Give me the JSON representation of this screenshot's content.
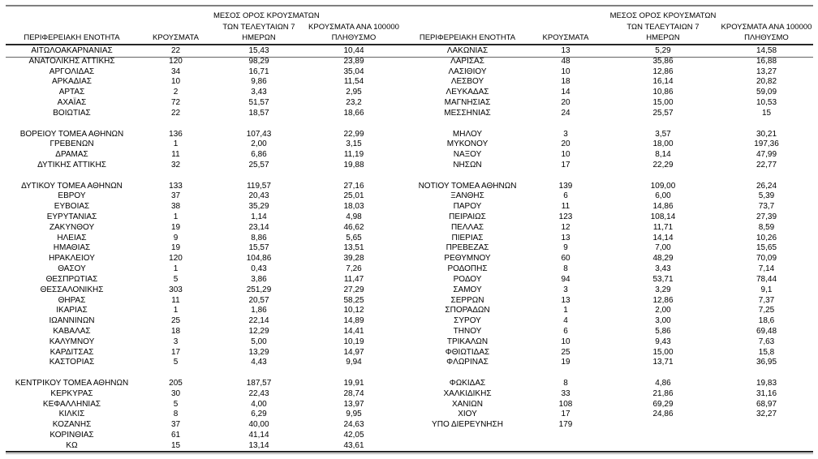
{
  "columns": [
    {
      "key": "name",
      "label": "ΠΕΡΙΦΕΡΕΙΑΚΗ ΕΝΟΤΗΤΑ"
    },
    {
      "key": "cases",
      "label": "ΚΡΟΥΣΜΑΤΑ"
    },
    {
      "key": "avg7",
      "label": "ΜΕΣΟΣ ΟΡΟΣ ΚΡΟΥΣΜΑΤΩΝ\nΤΩΝ ΤΕΛΕΥΤΑΙΩΝ 7\nΗΜΕΡΩΝ"
    },
    {
      "key": "per100k",
      "label": "ΚΡΟΥΣΜΑΤΑ ΑΝΑ 100000\nΠΛΗΘΥΣΜΟ"
    }
  ],
  "colors": {
    "text": "#000000",
    "top_rule": "#7f7f7f",
    "header_rule": "#262626",
    "freeze_rule": "#636363",
    "bottom_rule_dark": "#262626",
    "bottom_rule_grey": "#a6a6a6"
  },
  "tables": [
    {
      "groups": [
        {
          "rows": [
            {
              "name": "ΑΙΤΩΛΟΑΚΑΡΝΑΝΙΑΣ",
              "cases": "22",
              "avg7": "15,43",
              "per100k": "10,44"
            },
            {
              "name": "ΑΝΑΤΟΛΙΚΗΣ ΑΤΤΙΚΗΣ",
              "cases": "120",
              "avg7": "98,29",
              "per100k": "23,89"
            },
            {
              "name": "ΑΡΓΟΛΙΔΑΣ",
              "cases": "34",
              "avg7": "16,71",
              "per100k": "35,04"
            },
            {
              "name": "ΑΡΚΑΔΙΑΣ",
              "cases": "10",
              "avg7": "9,86",
              "per100k": "11,54"
            },
            {
              "name": "ΑΡΤΑΣ",
              "cases": "2",
              "avg7": "3,43",
              "per100k": "2,95"
            },
            {
              "name": "ΑΧΑΪΑΣ",
              "cases": "72",
              "avg7": "51,57",
              "per100k": "23,2"
            },
            {
              "name": "ΒΟΙΩΤΙΑΣ",
              "cases": "22",
              "avg7": "18,57",
              "per100k": "18,66"
            }
          ]
        },
        {
          "rows": [
            {
              "name": "ΒΟΡΕΙΟΥ ΤΟΜΕΑ ΑΘΗΝΩΝ",
              "cases": "136",
              "avg7": "107,43",
              "per100k": "22,99"
            },
            {
              "name": "ΓΡΕΒΕΝΩΝ",
              "cases": "1",
              "avg7": "2,00",
              "per100k": "3,15"
            },
            {
              "name": "ΔΡΑΜΑΣ",
              "cases": "11",
              "avg7": "6,86",
              "per100k": "11,19"
            },
            {
              "name": "ΔΥΤΙΚΗΣ ΑΤΤΙΚΗΣ",
              "cases": "32",
              "avg7": "25,57",
              "per100k": "19,88"
            }
          ]
        },
        {
          "rows": [
            {
              "name": "ΔΥΤΙΚΟΥ ΤΟΜΕΑ ΑΘΗΝΩΝ",
              "cases": "133",
              "avg7": "119,57",
              "per100k": "27,16"
            },
            {
              "name": "ΕΒΡΟΥ",
              "cases": "37",
              "avg7": "20,43",
              "per100k": "25,01"
            },
            {
              "name": "ΕΥΒΟΙΑΣ",
              "cases": "38",
              "avg7": "35,29",
              "per100k": "18,03"
            },
            {
              "name": "ΕΥΡΥΤΑΝΙΑΣ",
              "cases": "1",
              "avg7": "1,14",
              "per100k": "4,98"
            },
            {
              "name": "ΖΑΚΥΝΘΟΥ",
              "cases": "19",
              "avg7": "23,14",
              "per100k": "46,62"
            },
            {
              "name": "ΗΛΕΙΑΣ",
              "cases": "9",
              "avg7": "8,86",
              "per100k": "5,65"
            },
            {
              "name": "ΗΜΑΘΙΑΣ",
              "cases": "19",
              "avg7": "15,57",
              "per100k": "13,51"
            },
            {
              "name": "ΗΡΑΚΛΕΙΟΥ",
              "cases": "120",
              "avg7": "104,86",
              "per100k": "39,28"
            },
            {
              "name": "ΘΑΣΟΥ",
              "cases": "1",
              "avg7": "0,43",
              "per100k": "7,26"
            },
            {
              "name": "ΘΕΣΠΡΩΤΙΑΣ",
              "cases": "5",
              "avg7": "3,86",
              "per100k": "11,47"
            },
            {
              "name": "ΘΕΣΣΑΛΟΝΙΚΗΣ",
              "cases": "303",
              "avg7": "251,29",
              "per100k": "27,29"
            },
            {
              "name": "ΘΗΡΑΣ",
              "cases": "11",
              "avg7": "20,57",
              "per100k": "58,25"
            },
            {
              "name": "ΙΚΑΡΙΑΣ",
              "cases": "1",
              "avg7": "1,86",
              "per100k": "10,12"
            },
            {
              "name": "ΙΩΑΝΝΙΝΩΝ",
              "cases": "25",
              "avg7": "22,14",
              "per100k": "14,89"
            },
            {
              "name": "ΚΑΒΑΛΑΣ",
              "cases": "18",
              "avg7": "12,29",
              "per100k": "14,41"
            },
            {
              "name": "ΚΑΛΥΜΝΟΥ",
              "cases": "3",
              "avg7": "5,00",
              "per100k": "10,19"
            },
            {
              "name": "ΚΑΡΔΙΤΣΑΣ",
              "cases": "17",
              "avg7": "13,29",
              "per100k": "14,97"
            },
            {
              "name": "ΚΑΣΤΟΡΙΑΣ",
              "cases": "5",
              "avg7": "4,43",
              "per100k": "9,94"
            }
          ]
        },
        {
          "rows": [
            {
              "name": "ΚΕΝΤΡΙΚΟΥ ΤΟΜΕΑ ΑΘΗΝΩΝ",
              "cases": "205",
              "avg7": "187,57",
              "per100k": "19,91"
            },
            {
              "name": "ΚΕΡΚΥΡΑΣ",
              "cases": "30",
              "avg7": "22,43",
              "per100k": "28,74"
            },
            {
              "name": "ΚΕΦΑΛΛΗΝΙΑΣ",
              "cases": "5",
              "avg7": "4,00",
              "per100k": "13,97"
            },
            {
              "name": "ΚΙΛΚΙΣ",
              "cases": "8",
              "avg7": "6,29",
              "per100k": "9,95"
            },
            {
              "name": "ΚΟΖΑΝΗΣ",
              "cases": "37",
              "avg7": "40,00",
              "per100k": "24,63"
            },
            {
              "name": "ΚΟΡΙΝΘΙΑΣ",
              "cases": "61",
              "avg7": "41,14",
              "per100k": "42,05"
            },
            {
              "name": "ΚΩ",
              "cases": "15",
              "avg7": "13,14",
              "per100k": "43,61"
            }
          ]
        }
      ]
    },
    {
      "groups": [
        {
          "rows": [
            {
              "name": "ΛΑΚΩΝΙΑΣ",
              "cases": "13",
              "avg7": "5,29",
              "per100k": "14,58"
            },
            {
              "name": "ΛΑΡΙΣΑΣ",
              "cases": "48",
              "avg7": "35,86",
              "per100k": "16,88"
            },
            {
              "name": "ΛΑΣΙΘΙΟΥ",
              "cases": "10",
              "avg7": "12,86",
              "per100k": "13,27"
            },
            {
              "name": "ΛΕΣΒΟΥ",
              "cases": "18",
              "avg7": "16,14",
              "per100k": "20,82"
            },
            {
              "name": "ΛΕΥΚΑΔΑΣ",
              "cases": "14",
              "avg7": "10,86",
              "per100k": "59,09"
            },
            {
              "name": "ΜΑΓΝΗΣΙΑΣ",
              "cases": "20",
              "avg7": "15,00",
              "per100k": "10,53"
            },
            {
              "name": "ΜΕΣΣΗΝΙΑΣ",
              "cases": "24",
              "avg7": "25,57",
              "per100k": "15"
            }
          ]
        },
        {
          "rows": [
            {
              "name": "ΜΗΛΟΥ",
              "cases": "3",
              "avg7": "3,57",
              "per100k": "30,21"
            },
            {
              "name": "ΜΥΚΟΝΟΥ",
              "cases": "20",
              "avg7": "18,00",
              "per100k": "197,36"
            },
            {
              "name": "ΝΑΞΟΥ",
              "cases": "10",
              "avg7": "8,14",
              "per100k": "47,99"
            },
            {
              "name": "ΝΗΣΩΝ",
              "cases": "17",
              "avg7": "22,29",
              "per100k": "22,77"
            }
          ]
        },
        {
          "rows": [
            {
              "name": "ΝΟΤΙΟΥ ΤΟΜΕΑ ΑΘΗΝΩΝ",
              "cases": "139",
              "avg7": "109,00",
              "per100k": "26,24"
            },
            {
              "name": "ΞΑΝΘΗΣ",
              "cases": "6",
              "avg7": "6,00",
              "per100k": "5,39"
            },
            {
              "name": "ΠΑΡΟΥ",
              "cases": "11",
              "avg7": "14,86",
              "per100k": "73,7"
            },
            {
              "name": "ΠΕΙΡΑΙΩΣ",
              "cases": "123",
              "avg7": "108,14",
              "per100k": "27,39"
            },
            {
              "name": "ΠΕΛΛΑΣ",
              "cases": "12",
              "avg7": "11,71",
              "per100k": "8,59"
            },
            {
              "name": "ΠΙΕΡΙΑΣ",
              "cases": "13",
              "avg7": "14,14",
              "per100k": "10,26"
            },
            {
              "name": "ΠΡΕΒΕΖΑΣ",
              "cases": "9",
              "avg7": "7,00",
              "per100k": "15,65"
            },
            {
              "name": "ΡΕΘΥΜΝΟΥ",
              "cases": "60",
              "avg7": "48,29",
              "per100k": "70,09"
            },
            {
              "name": "ΡΟΔΟΠΗΣ",
              "cases": "8",
              "avg7": "3,43",
              "per100k": "7,14"
            },
            {
              "name": "ΡΟΔΟΥ",
              "cases": "94",
              "avg7": "53,71",
              "per100k": "78,44"
            },
            {
              "name": "ΣΑΜΟΥ",
              "cases": "3",
              "avg7": "3,29",
              "per100k": "9,1"
            },
            {
              "name": "ΣΕΡΡΩΝ",
              "cases": "13",
              "avg7": "12,86",
              "per100k": "7,37"
            },
            {
              "name": "ΣΠΟΡΑΔΩΝ",
              "cases": "1",
              "avg7": "2,00",
              "per100k": "7,25"
            },
            {
              "name": "ΣΥΡΟΥ",
              "cases": "4",
              "avg7": "3,00",
              "per100k": "18,6"
            },
            {
              "name": "ΤΗΝΟΥ",
              "cases": "6",
              "avg7": "5,86",
              "per100k": "69,48"
            },
            {
              "name": "ΤΡΙΚΑΛΩΝ",
              "cases": "10",
              "avg7": "9,43",
              "per100k": "7,63"
            },
            {
              "name": "ΦΘΙΩΤΙΔΑΣ",
              "cases": "25",
              "avg7": "15,00",
              "per100k": "15,8"
            },
            {
              "name": "ΦΛΩΡΙΝΑΣ",
              "cases": "19",
              "avg7": "13,71",
              "per100k": "36,95"
            }
          ]
        },
        {
          "rows": [
            {
              "name": "ΦΩΚΙΔΑΣ",
              "cases": "8",
              "avg7": "4,86",
              "per100k": "19,83"
            },
            {
              "name": "ΧΑΛΚΙΔΙΚΗΣ",
              "cases": "33",
              "avg7": "21,86",
              "per100k": "31,16"
            },
            {
              "name": "ΧΑΝΙΩΝ",
              "cases": "108",
              "avg7": "69,29",
              "per100k": "68,97"
            },
            {
              "name": "ΧΙΟΥ",
              "cases": "17",
              "avg7": "24,86",
              "per100k": "32,27"
            },
            {
              "name": "ΥΠΟ ΔΙΕΡΕΥΝΗΣΗ",
              "cases": "179",
              "avg7": "",
              "per100k": ""
            }
          ]
        }
      ]
    }
  ]
}
